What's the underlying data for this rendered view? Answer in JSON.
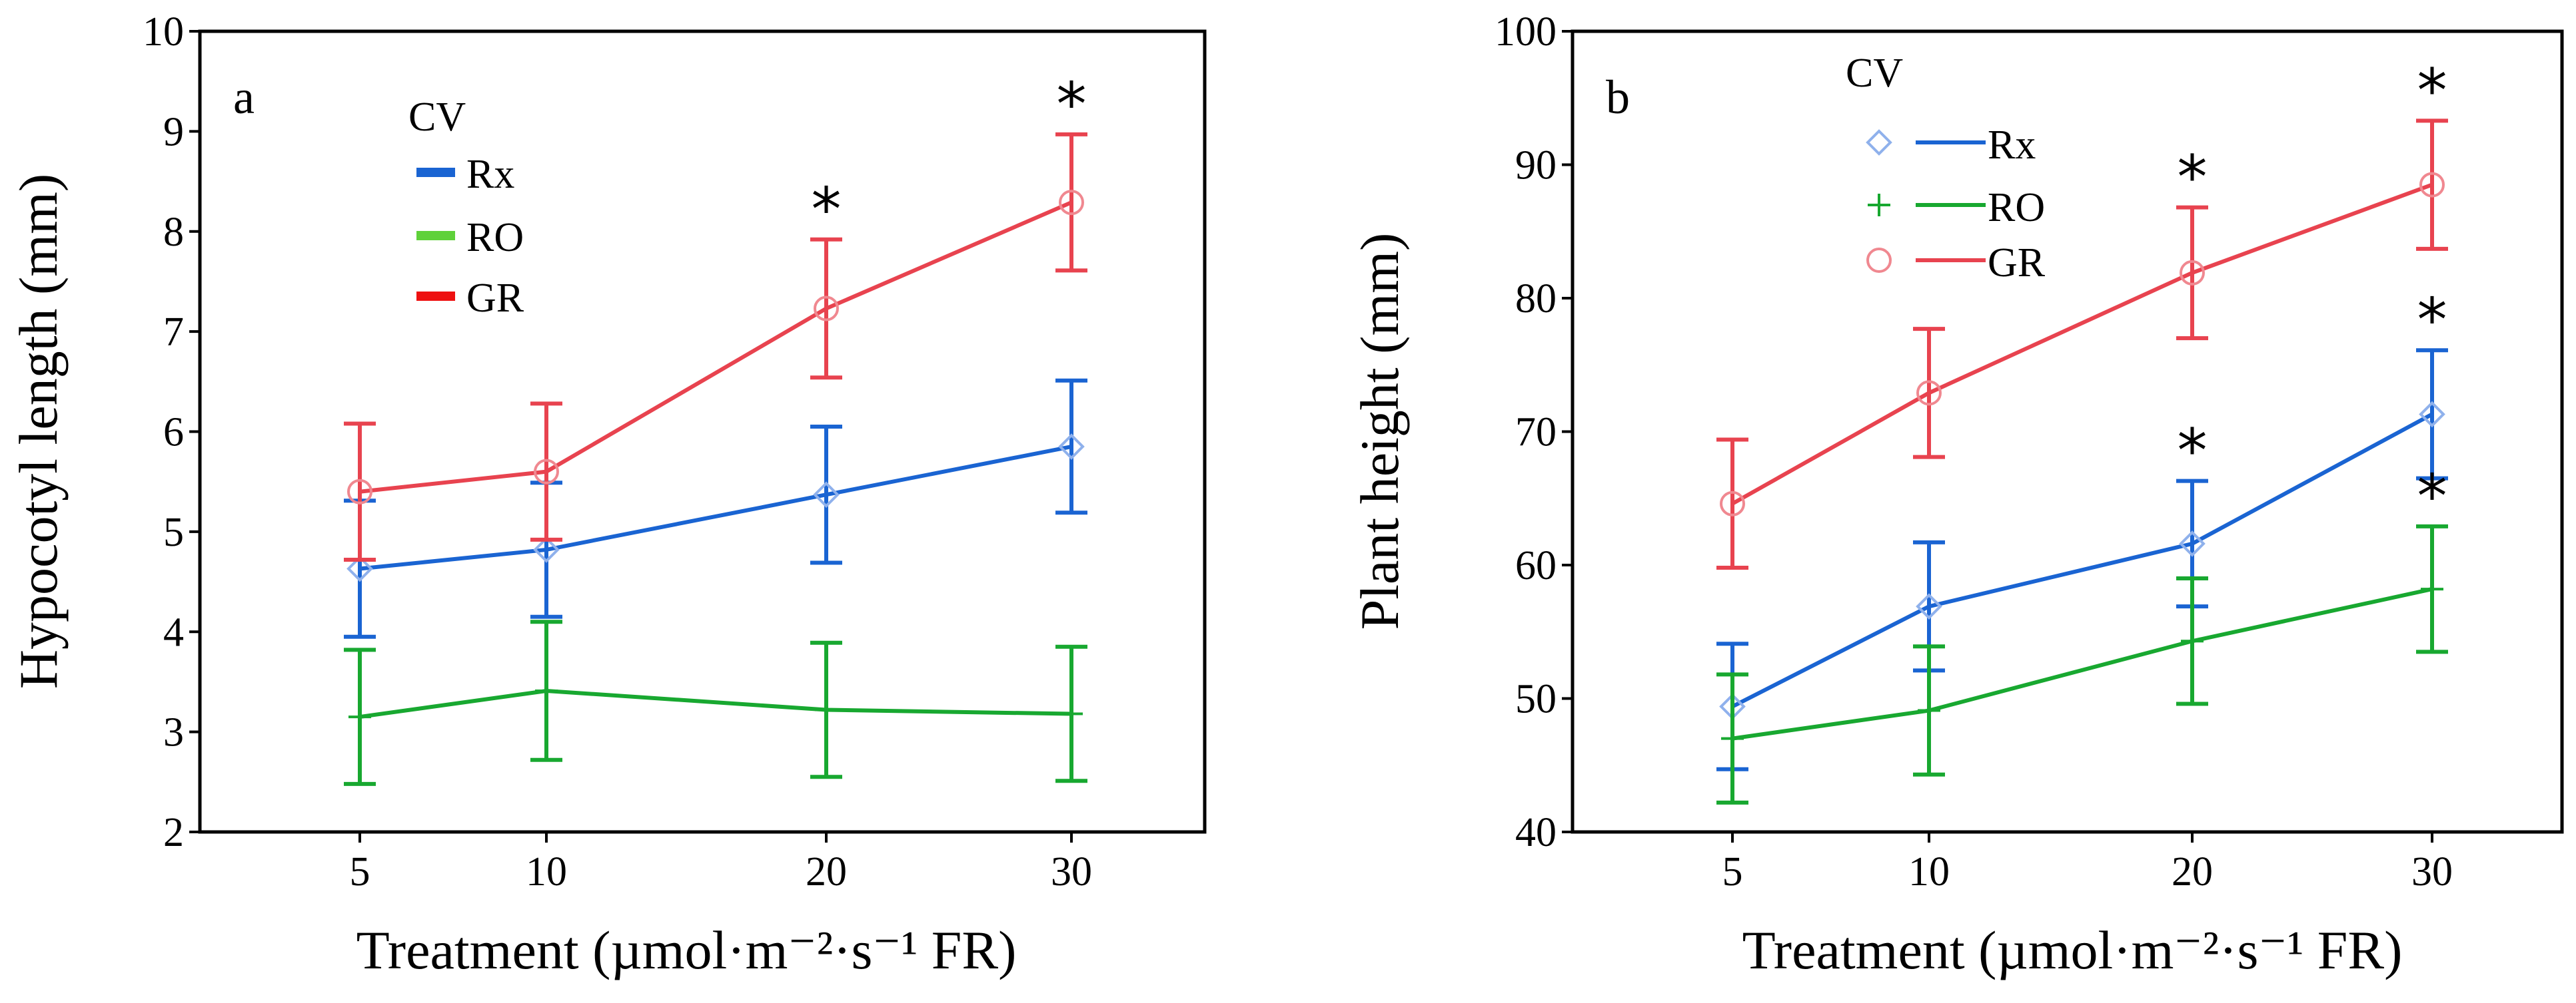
{
  "chart_data": [
    {
      "type": "line",
      "panel_label": "a",
      "title": "",
      "xlabel": "Treatment (µmol·m⁻²·s⁻¹ FR)",
      "ylabel": "Hypocotyl length (mm)",
      "categories": [
        "5",
        "10",
        "20",
        "30"
      ],
      "ylim": [
        2,
        10
      ],
      "yticks": [
        "2",
        "3",
        "4",
        "5",
        "6",
        "7",
        "8",
        "9",
        "10"
      ],
      "grid": false,
      "legend": {
        "title": "CV",
        "placement": "top-left",
        "style": "color-bar",
        "entries": [
          "Rx",
          "RO",
          "GR"
        ]
      },
      "series": [
        {
          "name": "Rx",
          "color": "#1a64d2",
          "marker": "diamond",
          "values": [
            4.63,
            4.82,
            5.37,
            5.85
          ],
          "errors": [
            0.68,
            0.67,
            0.68,
            0.66
          ]
        },
        {
          "name": "RO",
          "color": "#18a830",
          "marker": "plus",
          "values": [
            3.15,
            3.41,
            3.22,
            3.18
          ],
          "errors": [
            0.67,
            0.69,
            0.67,
            0.67
          ]
        },
        {
          "name": "GR",
          "color": "#e8434f",
          "marker": "circle",
          "values": [
            5.4,
            5.6,
            7.23,
            8.29
          ],
          "errors": [
            0.68,
            0.68,
            0.69,
            0.68
          ]
        }
      ],
      "annotations": [
        {
          "text": "*",
          "category": "20",
          "series": "GR"
        },
        {
          "text": "*",
          "category": "30",
          "series": "GR"
        }
      ]
    },
    {
      "type": "line",
      "panel_label": "b",
      "title": "",
      "xlabel": "Treatment (µmol·m⁻²·s⁻¹ FR)",
      "ylabel": "Plant height (mm)",
      "categories": [
        "5",
        "10",
        "20",
        "30"
      ],
      "ylim": [
        40,
        100
      ],
      "yticks": [
        "40",
        "50",
        "60",
        "70",
        "80",
        "90",
        "100"
      ],
      "grid": false,
      "legend": {
        "title": "CV",
        "placement": "top-left",
        "style": "marker-line",
        "entries": [
          "Rx",
          "RO",
          "GR"
        ]
      },
      "series": [
        {
          "name": "Rx",
          "color": "#1a64d2",
          "marker": "diamond",
          "values": [
            49.4,
            56.9,
            61.6,
            71.3
          ],
          "errors": [
            4.7,
            4.8,
            4.7,
            4.8
          ]
        },
        {
          "name": "RO",
          "color": "#18a830",
          "marker": "plus",
          "values": [
            47.0,
            49.1,
            54.3,
            58.2
          ],
          "errors": [
            4.8,
            4.8,
            4.7,
            4.7
          ]
        },
        {
          "name": "GR",
          "color": "#e8434f",
          "marker": "circle",
          "values": [
            64.6,
            72.9,
            81.9,
            88.5
          ],
          "errors": [
            4.8,
            4.8,
            4.9,
            4.8
          ]
        }
      ],
      "annotations": [
        {
          "text": "*",
          "category": "20",
          "series": "GR"
        },
        {
          "text": "*",
          "category": "30",
          "series": "GR"
        },
        {
          "text": "*",
          "category": "20",
          "series": "Rx"
        },
        {
          "text": "*",
          "category": "30",
          "series": "Rx"
        },
        {
          "text": "*",
          "category": "30",
          "series": "RO"
        }
      ]
    }
  ]
}
